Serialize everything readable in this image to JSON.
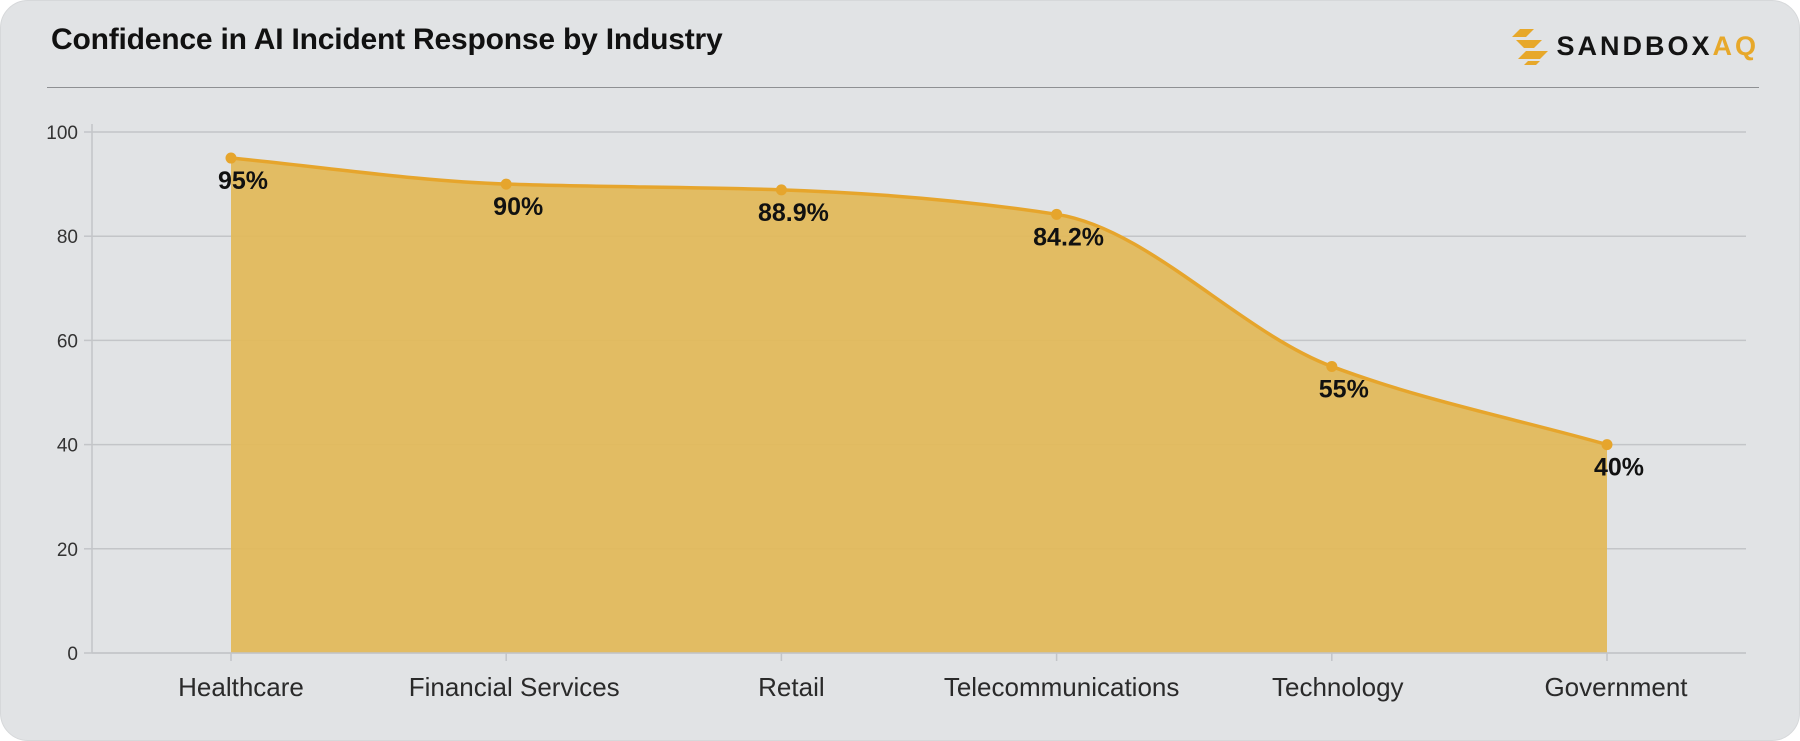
{
  "header": {
    "title": "Confidence in AI Incident Response by Industry",
    "logo": {
      "text_main": "SANDBOX",
      "text_accent": "AQ",
      "icon": "sandboxaq-logo-icon"
    }
  },
  "colors": {
    "accent": "#e7a82a",
    "area_fill": "#e2b95c",
    "line": "#e6a52c",
    "grid": "#c3c5c8",
    "background": "#e1e3e5"
  },
  "chart_data": {
    "type": "area",
    "title": "",
    "xlabel": "",
    "ylabel": "",
    "categories": [
      "Healthcare",
      "Financial Services",
      "Retail",
      "Telecommunications",
      "Technology",
      "Government"
    ],
    "series": [
      {
        "values": [
          95,
          90,
          88.9,
          84.2,
          55,
          40
        ]
      }
    ],
    "data_labels": [
      "95%",
      "90%",
      "88.9%",
      "84.2%",
      "55%",
      "40%"
    ],
    "yticks": [
      0,
      20,
      40,
      60,
      80,
      100
    ],
    "ylim": [
      0,
      100
    ],
    "grid": true,
    "legend": "none"
  }
}
